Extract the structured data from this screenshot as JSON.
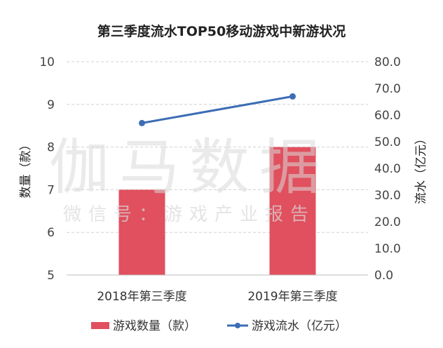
{
  "chart_data": {
    "type": "bar",
    "title": "第三季度流水TOP50移动游戏中新游状况",
    "categories": [
      "2018年第三季度",
      "2019年第三季度"
    ],
    "series": [
      {
        "name": "游戏数量（款）",
        "type": "bar",
        "axis": "left",
        "values": [
          7,
          8
        ],
        "color": "#e0505e"
      },
      {
        "name": "游戏流水（亿元）",
        "type": "line",
        "axis": "right",
        "values": [
          57.0,
          67.0
        ],
        "color": "#3c6db5"
      }
    ],
    "ylabel": "数量（款）",
    "y2label": "流水（亿元）",
    "ylim": [
      5,
      10
    ],
    "y2lim": [
      0,
      80
    ],
    "yticks": [
      "5",
      "6",
      "7",
      "8",
      "9",
      "10"
    ],
    "y2ticks": [
      "0.0",
      "10.0",
      "20.0",
      "30.0",
      "40.0",
      "50.0",
      "60.0",
      "70.0",
      "80.0"
    ],
    "grid": true,
    "legend": "bottom"
  },
  "watermark": {
    "brand": "伽马数据",
    "tagline": "微信号：游戏产业报告"
  }
}
